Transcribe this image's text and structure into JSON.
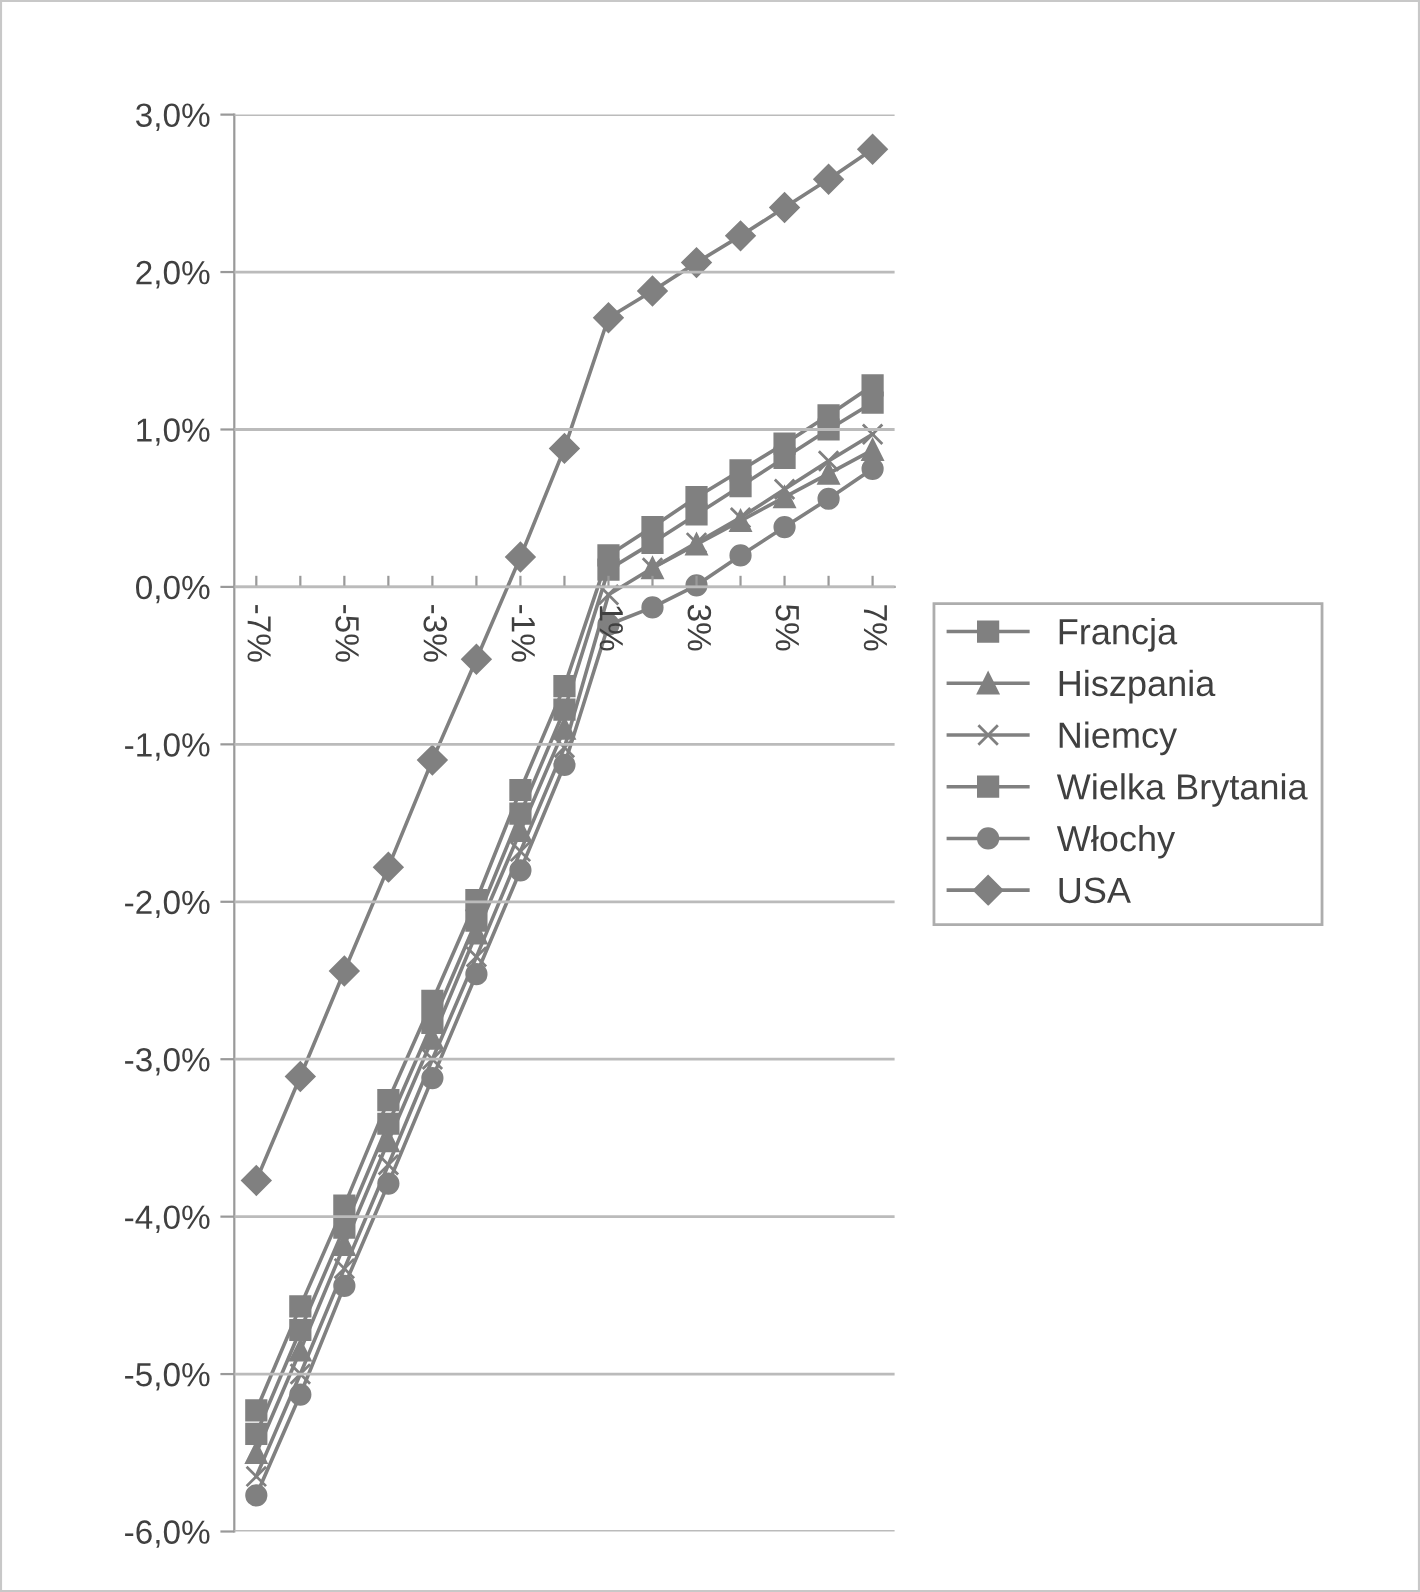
{
  "chart_data": {
    "type": "line",
    "categories": [
      "-7%",
      null,
      "-5%",
      null,
      "-3%",
      null,
      "-1%",
      null,
      "1%",
      null,
      "3%",
      null,
      "5%",
      null,
      "7%"
    ],
    "series": [
      {
        "name": "Francja",
        "color": "#808080",
        "marker": "square",
        "values": [
          -5.38,
          -4.72,
          -4.07,
          -3.41,
          -2.77,
          -2.12,
          -1.44,
          -0.78,
          0.11,
          0.28,
          0.46,
          0.64,
          0.82,
          1.0,
          1.17
        ]
      },
      {
        "name": "Hiszpania",
        "color": "#808080",
        "marker": "triangle",
        "values": [
          -5.5,
          -4.85,
          -4.18,
          -3.52,
          -2.87,
          -2.2,
          -1.55,
          -0.9,
          null,
          0.12,
          0.27,
          0.42,
          0.57,
          0.72,
          0.87
        ]
      },
      {
        "name": "Niemcy",
        "color": "#808080",
        "marker": "cross",
        "values": [
          -5.65,
          -5.0,
          -4.33,
          -3.67,
          -3.0,
          -2.35,
          -1.68,
          -1.02,
          -0.05,
          0.12,
          0.28,
          0.44,
          0.62,
          0.8,
          0.97
        ]
      },
      {
        "name": "Wielka Brytania",
        "color": "#808080",
        "marker": "square",
        "values": [
          -5.23,
          -4.57,
          -3.93,
          -3.26,
          -2.63,
          -1.99,
          -1.29,
          -0.63,
          0.2,
          0.38,
          0.57,
          0.74,
          0.91,
          1.09,
          1.28
        ]
      },
      {
        "name": "Włochy",
        "color": "#808080",
        "marker": "circle",
        "values": [
          -5.77,
          -5.13,
          -4.44,
          -3.79,
          -3.12,
          -2.46,
          -1.8,
          -1.13,
          -0.24,
          -0.13,
          0.01,
          0.2,
          0.38,
          0.56,
          0.75
        ]
      },
      {
        "name": "USA",
        "color": "#808080",
        "marker": "diamond",
        "values": [
          -3.77,
          -3.11,
          -2.44,
          -1.78,
          -1.1,
          -0.46,
          0.19,
          0.88,
          1.71,
          1.88,
          2.06,
          2.23,
          2.41,
          2.59,
          2.78
        ]
      }
    ],
    "ylim": [
      -6,
      3
    ],
    "yticks": [
      {
        "value": -6,
        "label": "-6,0%"
      },
      {
        "value": -5,
        "label": "-5,0%"
      },
      {
        "value": -4,
        "label": "-4,0%"
      },
      {
        "value": -3,
        "label": "-3,0%"
      },
      {
        "value": -2,
        "label": "-2,0%"
      },
      {
        "value": -1,
        "label": "-1,0%"
      },
      {
        "value": 0,
        "label": "0,0%"
      },
      {
        "value": 1,
        "label": "1,0%"
      },
      {
        "value": 2,
        "label": "2,0%"
      },
      {
        "value": 3,
        "label": "3,0%"
      }
    ],
    "grid": "y",
    "legend": "right"
  }
}
